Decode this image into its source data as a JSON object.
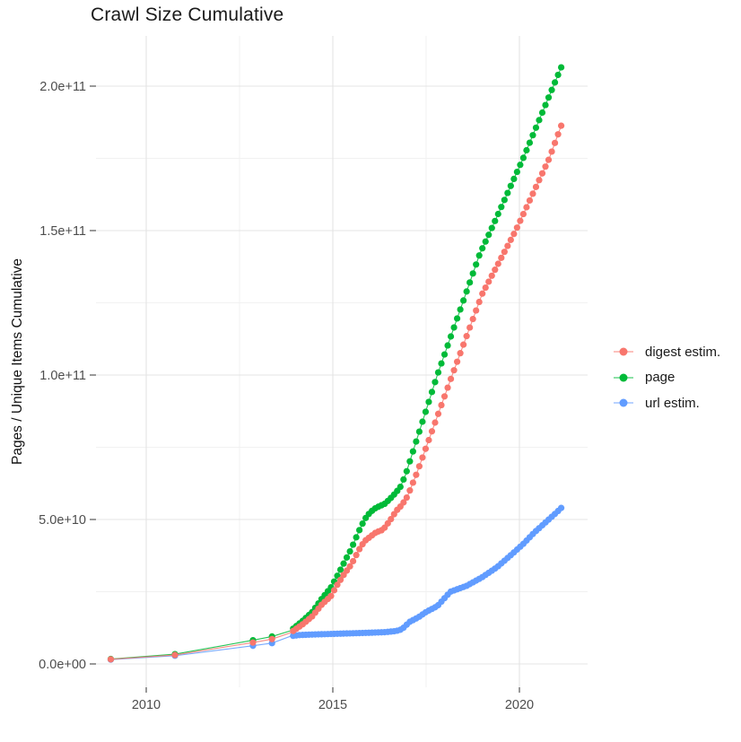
{
  "chart_data": {
    "type": "scatter",
    "title": "Crawl Size Cumulative",
    "xlabel": "",
    "ylabel": "Pages / Unique Items Cumulative",
    "xlim": [
      2008.6,
      2021.8
    ],
    "ylim": [
      -8000000000.0,
      217000000000.0
    ],
    "grid": "major+minor",
    "legend_position": "right",
    "x_ticks": [
      {
        "value": 2010,
        "label": "2010"
      },
      {
        "value": 2015,
        "label": "2015"
      },
      {
        "value": 2020,
        "label": "2020"
      }
    ],
    "x_minor": [
      2012.5,
      2017.5
    ],
    "y_ticks": [
      {
        "value": 0,
        "label": "0.0e+00"
      },
      {
        "value": 50000000000.0,
        "label": "5.0e+10"
      },
      {
        "value": 100000000000.0,
        "label": "1.0e+11"
      },
      {
        "value": 150000000000.0,
        "label": "1.5e+11"
      },
      {
        "value": 200000000000.0,
        "label": "2.0e+11"
      }
    ],
    "y_minor": [
      25000000000.0,
      75000000000.0,
      125000000000.0,
      175000000000.0
    ],
    "point_interval_years": 0.0845,
    "dense_from_year": 2013.87,
    "series": [
      {
        "name": "digest estim.",
        "color": "#F8766D",
        "anchors": [
          [
            2009.05,
            1600000000.0
          ],
          [
            2010.77,
            3100000000.0
          ],
          [
            2012.86,
            7400000000.0
          ],
          [
            2013.37,
            8600000000.0
          ],
          [
            2013.87,
            10800000000.0
          ],
          [
            2014.2,
            13800000000.0
          ],
          [
            2014.45,
            16500000000.0
          ],
          [
            2014.7,
            20500000000.0
          ],
          [
            2014.95,
            23500000000.0
          ],
          [
            2015.1,
            27000000000.0
          ],
          [
            2015.3,
            31000000000.0
          ],
          [
            2015.5,
            34500000000.0
          ],
          [
            2015.7,
            39500000000.0
          ],
          [
            2015.85,
            42500000000.0
          ],
          [
            2016.0,
            44000000000.0
          ],
          [
            2016.15,
            45500000000.0
          ],
          [
            2016.35,
            46500000000.0
          ],
          [
            2016.55,
            50000000000.0
          ],
          [
            2016.7,
            53000000000.0
          ],
          [
            2016.85,
            55000000000.0
          ],
          [
            2017.0,
            58000000000.0
          ],
          [
            2017.25,
            66000000000.0
          ],
          [
            2018.2,
            100000000000.0
          ],
          [
            2019.0,
            128000000000.0
          ],
          [
            2019.9,
            150000000000.0
          ],
          [
            2020.8,
            175000000000.0
          ],
          [
            2021.12,
            186300000000.0
          ]
        ]
      },
      {
        "name": "page",
        "color": "#00BA38",
        "anchors": [
          [
            2009.05,
            1700000000.0
          ],
          [
            2010.77,
            3400000000.0
          ],
          [
            2012.86,
            8200000000.0
          ],
          [
            2013.37,
            9500000000.0
          ],
          [
            2013.87,
            11500000000.0
          ],
          [
            2014.2,
            15000000000.0
          ],
          [
            2014.45,
            18000000000.0
          ],
          [
            2014.7,
            22500000000.0
          ],
          [
            2014.95,
            26500000000.0
          ],
          [
            2015.1,
            30000000000.0
          ],
          [
            2015.3,
            35000000000.0
          ],
          [
            2015.5,
            40000000000.0
          ],
          [
            2015.7,
            46000000000.0
          ],
          [
            2015.85,
            50000000000.0
          ],
          [
            2016.0,
            52500000000.0
          ],
          [
            2016.15,
            54000000000.0
          ],
          [
            2016.4,
            55500000000.0
          ],
          [
            2016.6,
            58000000000.0
          ],
          [
            2016.8,
            61000000000.0
          ],
          [
            2016.95,
            65500000000.0
          ],
          [
            2017.8,
            100000000000.0
          ],
          [
            2018.94,
            142000000000.0
          ],
          [
            2019.23,
            150000000000.0
          ],
          [
            2020.1,
            175000000000.0
          ],
          [
            2021.12,
            206500000000.0
          ]
        ]
      },
      {
        "name": "url estim.",
        "color": "#619CFF",
        "anchors": [
          [
            2009.05,
            1500000000.0
          ],
          [
            2010.77,
            2850000000.0
          ],
          [
            2012.86,
            6300000000.0
          ],
          [
            2013.37,
            7200000000.0
          ],
          [
            2013.87,
            9600000000.0
          ],
          [
            2014.1,
            10000000000.0
          ],
          [
            2014.5,
            10200000000.0
          ],
          [
            2015.0,
            10400000000.0
          ],
          [
            2015.5,
            10600000000.0
          ],
          [
            2016.0,
            10800000000.0
          ],
          [
            2016.4,
            11000000000.0
          ],
          [
            2016.7,
            11400000000.0
          ],
          [
            2016.85,
            12000000000.0
          ],
          [
            2016.95,
            13200000000.0
          ],
          [
            2017.05,
            14500000000.0
          ],
          [
            2017.3,
            16200000000.0
          ],
          [
            2017.5,
            18000000000.0
          ],
          [
            2017.8,
            20000000000.0
          ],
          [
            2018.15,
            25000000000.0
          ],
          [
            2018.58,
            27000000000.0
          ],
          [
            2019.0,
            30000000000.0
          ],
          [
            2019.4,
            33500000000.0
          ],
          [
            2019.8,
            38000000000.0
          ],
          [
            2020.1,
            41500000000.0
          ],
          [
            2020.4,
            45500000000.0
          ],
          [
            2020.7,
            49000000000.0
          ],
          [
            2021.0,
            52500000000.0
          ],
          [
            2021.12,
            54000000000.0
          ]
        ]
      }
    ],
    "colors": {
      "grid_major": "#e4e4e4",
      "grid_minor": "#f1f1f1",
      "tick_mark": "#333333",
      "tick_label": "#4d4d4d",
      "text": "#1a1a1a"
    }
  }
}
